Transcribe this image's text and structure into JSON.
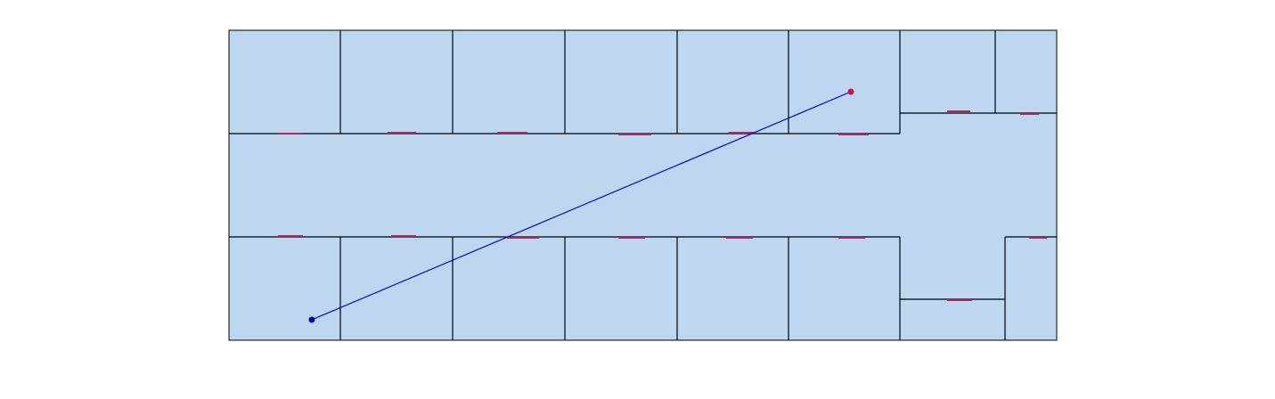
{
  "colors": {
    "background": "#ffffff",
    "room_fill": "#bdd7f0",
    "wall": "#000000",
    "door": "#b0285a",
    "path_line": "#0000dd",
    "start_marker": "#0000aa",
    "end_marker": "#cc1133"
  },
  "path": {
    "has_start_marker": true,
    "has_end_marker": true
  }
}
